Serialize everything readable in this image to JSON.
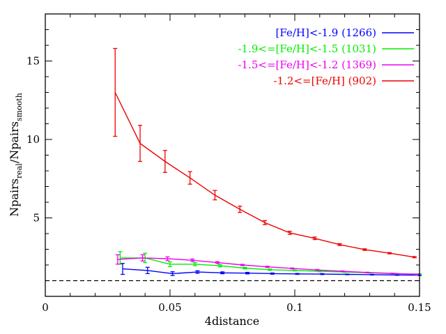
{
  "chart_data": {
    "type": "line",
    "title": "",
    "xlabel": "4distance",
    "ylabel": {
      "prefix": "Npairs",
      "sub1": "real",
      "mid": "/Npairs",
      "sub2": "smooth"
    },
    "xlim": [
      0,
      0.15
    ],
    "ylim": [
      0,
      18
    ],
    "xticks": [
      {
        "value": 0,
        "label": "0"
      },
      {
        "value": 0.05,
        "label": "0.05"
      },
      {
        "value": 0.1,
        "label": "0.1"
      },
      {
        "value": 0.15,
        "label": "0.15"
      }
    ],
    "yticks": [
      {
        "value": 5,
        "label": "5"
      },
      {
        "value": 10,
        "label": "10"
      },
      {
        "value": 15,
        "label": "15"
      }
    ],
    "reference_line": {
      "y": 1.0,
      "style": "dashed",
      "color": "#000000"
    },
    "legend_position": "top-right",
    "series": [
      {
        "name": "[Fe/H]<-1.9 (1266)",
        "color": "#0000ff",
        "points": [
          {
            "x": 0.031,
            "y": 1.75,
            "err": 0.35
          },
          {
            "x": 0.041,
            "y": 1.65,
            "err": 0.2
          },
          {
            "x": 0.051,
            "y": 1.45,
            "err": 0.12
          },
          {
            "x": 0.061,
            "y": 1.55,
            "err": 0.08
          },
          {
            "x": 0.071,
            "y": 1.5,
            "err": 0.06
          },
          {
            "x": 0.081,
            "y": 1.48,
            "err": 0.05
          },
          {
            "x": 0.091,
            "y": 1.45,
            "err": 0.04
          },
          {
            "x": 0.101,
            "y": 1.43,
            "err": 0.03
          },
          {
            "x": 0.111,
            "y": 1.42,
            "err": 0.03
          },
          {
            "x": 0.121,
            "y": 1.4,
            "err": 0.02
          },
          {
            "x": 0.131,
            "y": 1.38,
            "err": 0.02
          },
          {
            "x": 0.141,
            "y": 1.36,
            "err": 0.02
          },
          {
            "x": 0.15,
            "y": 1.35,
            "err": 0.02
          }
        ]
      },
      {
        "name": "-1.9<=[Fe/H]<-1.5 (1031)",
        "color": "#00ee00",
        "points": [
          {
            "x": 0.03,
            "y": 2.45,
            "err": 0.4
          },
          {
            "x": 0.04,
            "y": 2.45,
            "err": 0.3
          },
          {
            "x": 0.05,
            "y": 2.05,
            "err": 0.15
          },
          {
            "x": 0.06,
            "y": 2.05,
            "err": 0.1
          },
          {
            "x": 0.07,
            "y": 1.95,
            "err": 0.07
          },
          {
            "x": 0.08,
            "y": 1.8,
            "err": 0.05
          },
          {
            "x": 0.09,
            "y": 1.7,
            "err": 0.04
          },
          {
            "x": 0.1,
            "y": 1.65,
            "err": 0.03
          },
          {
            "x": 0.11,
            "y": 1.6,
            "err": 0.03
          },
          {
            "x": 0.12,
            "y": 1.55,
            "err": 0.02
          },
          {
            "x": 0.13,
            "y": 1.5,
            "err": 0.02
          },
          {
            "x": 0.14,
            "y": 1.45,
            "err": 0.02
          },
          {
            "x": 0.15,
            "y": 1.42,
            "err": 0.02
          }
        ]
      },
      {
        "name": "-1.5<=[Fe/H]<-1.2 (1369)",
        "color": "#ee00ee",
        "points": [
          {
            "x": 0.029,
            "y": 2.35,
            "err": 0.3
          },
          {
            "x": 0.039,
            "y": 2.45,
            "err": 0.2
          },
          {
            "x": 0.049,
            "y": 2.4,
            "err": 0.12
          },
          {
            "x": 0.059,
            "y": 2.3,
            "err": 0.08
          },
          {
            "x": 0.069,
            "y": 2.15,
            "err": 0.06
          },
          {
            "x": 0.079,
            "y": 2.0,
            "err": 0.04
          },
          {
            "x": 0.089,
            "y": 1.88,
            "err": 0.04
          },
          {
            "x": 0.099,
            "y": 1.78,
            "err": 0.03
          },
          {
            "x": 0.109,
            "y": 1.68,
            "err": 0.03
          },
          {
            "x": 0.119,
            "y": 1.6,
            "err": 0.02
          },
          {
            "x": 0.129,
            "y": 1.52,
            "err": 0.02
          },
          {
            "x": 0.139,
            "y": 1.46,
            "err": 0.02
          },
          {
            "x": 0.149,
            "y": 1.4,
            "err": 0.02
          }
        ]
      },
      {
        "name": "-1.2<=[Fe/H] (902)",
        "color": "#ee0000",
        "points": [
          {
            "x": 0.028,
            "y": 13.0,
            "err": 2.8
          },
          {
            "x": 0.038,
            "y": 9.75,
            "err": 1.15
          },
          {
            "x": 0.048,
            "y": 8.6,
            "err": 0.7
          },
          {
            "x": 0.058,
            "y": 7.55,
            "err": 0.4
          },
          {
            "x": 0.068,
            "y": 6.45,
            "err": 0.3
          },
          {
            "x": 0.078,
            "y": 5.55,
            "err": 0.2
          },
          {
            "x": 0.088,
            "y": 4.7,
            "err": 0.13
          },
          {
            "x": 0.098,
            "y": 4.05,
            "err": 0.1
          },
          {
            "x": 0.108,
            "y": 3.7,
            "err": 0.08
          },
          {
            "x": 0.118,
            "y": 3.3,
            "err": 0.06
          },
          {
            "x": 0.128,
            "y": 2.98,
            "err": 0.05
          },
          {
            "x": 0.138,
            "y": 2.75,
            "err": 0.04
          },
          {
            "x": 0.148,
            "y": 2.5,
            "err": 0.04
          }
        ]
      }
    ]
  }
}
